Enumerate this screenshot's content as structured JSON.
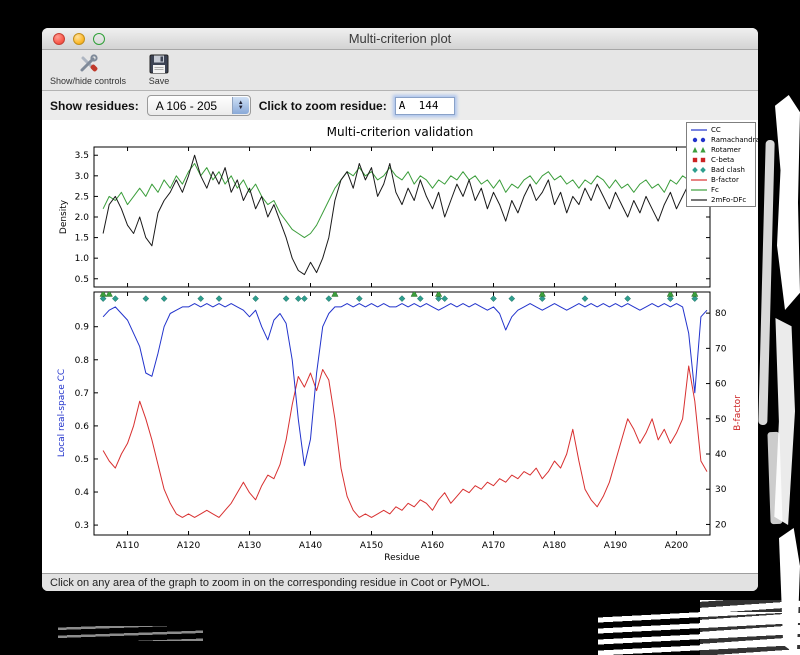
{
  "window": {
    "title": "Multi-criterion plot"
  },
  "toolbar": {
    "show_hide_label": "Show/hide controls",
    "save_label": "Save"
  },
  "controls": {
    "show_residues_label": "Show residues:",
    "residue_range": "A 106 - 205",
    "zoom_label": "Click to zoom residue:",
    "zoom_value": "A  144"
  },
  "statusbar": {
    "text": "Click on any area of the graph to zoom in on the corresponding residue in Coot or PyMOL."
  },
  "figure": {
    "title": "Multi-criterion validation",
    "xlabel": "Residue"
  },
  "legend": [
    {
      "label": "CC",
      "type": "line",
      "color": "#2233cc"
    },
    {
      "label": "Ramachandran",
      "type": "circle",
      "color": "#2233cc"
    },
    {
      "label": "Rotamer",
      "type": "triangle",
      "color": "#3c9e3c"
    },
    {
      "label": "C-beta",
      "type": "square",
      "color": "#cc2222"
    },
    {
      "label": "Bad clash",
      "type": "diamond",
      "color": "#2e9e8e"
    },
    {
      "label": "B-factor",
      "type": "line",
      "color": "#d83030"
    },
    {
      "label": "Fc",
      "type": "line",
      "color": "#3c9e3c"
    },
    {
      "label": "2mFo-DFc",
      "type": "line",
      "color": "#1a1a1a"
    }
  ],
  "chart_data": {
    "type": "line",
    "x_start": 106,
    "xlim": [
      104.5,
      205.5
    ],
    "xticks": {
      "values": [
        110,
        120,
        130,
        140,
        150,
        160,
        170,
        180,
        190,
        200
      ],
      "labels": [
        "A110",
        "A120",
        "A130",
        "A140",
        "A150",
        "A160",
        "A170",
        "A180",
        "A190",
        "A200"
      ]
    },
    "top": {
      "ylabel": "Density",
      "ylim": [
        0.3,
        3.7
      ],
      "yticks": [
        0.5,
        1.0,
        1.5,
        2.0,
        2.5,
        3.0,
        3.5
      ],
      "series": [
        {
          "name": "Fc",
          "color": "#3c9e3c",
          "values": [
            2.2,
            2.5,
            2.4,
            2.6,
            2.3,
            2.5,
            2.7,
            2.5,
            2.8,
            2.6,
            2.9,
            2.7,
            3.0,
            2.8,
            3.1,
            3.3,
            3.0,
            3.2,
            2.9,
            3.1,
            2.8,
            3.0,
            2.7,
            2.9,
            2.6,
            2.8,
            2.5,
            2.3,
            2.4,
            2.1,
            1.9,
            1.7,
            1.6,
            1.5,
            1.6,
            1.8,
            2.1,
            2.4,
            2.7,
            2.9,
            3.1,
            3.0,
            3.2,
            3.0,
            3.1,
            2.9,
            3.0,
            3.2,
            3.0,
            2.9,
            3.1,
            2.8,
            3.0,
            2.9,
            2.7,
            2.9,
            2.8,
            3.0,
            2.9,
            3.1,
            2.9,
            3.0,
            2.8,
            2.9,
            2.7,
            2.9,
            2.6,
            2.8,
            2.7,
            2.9,
            3.0,
            2.8,
            3.0,
            3.1,
            2.9,
            3.0,
            2.8,
            2.9,
            2.7,
            2.9,
            2.8,
            3.0,
            2.9,
            2.7,
            2.9,
            2.7,
            2.8,
            2.6,
            2.8,
            2.9,
            2.7,
            2.8,
            2.6,
            2.9,
            2.8,
            3.0,
            2.9,
            3.1,
            2.8,
            3.0
          ]
        },
        {
          "name": "2mFo-DFc",
          "color": "#1a1a1a",
          "values": [
            1.6,
            2.3,
            2.5,
            2.2,
            1.8,
            1.6,
            2.0,
            1.5,
            1.3,
            2.1,
            2.4,
            2.6,
            2.9,
            2.6,
            3.0,
            3.5,
            3.0,
            2.7,
            3.1,
            2.8,
            3.2,
            2.6,
            2.9,
            2.4,
            2.7,
            2.2,
            2.5,
            2.0,
            2.3,
            1.9,
            1.5,
            1.0,
            0.7,
            0.6,
            0.9,
            0.65,
            1.0,
            1.5,
            2.4,
            2.9,
            3.1,
            2.7,
            3.3,
            2.9,
            3.2,
            2.5,
            2.8,
            3.3,
            2.6,
            2.3,
            2.7,
            2.4,
            2.9,
            2.5,
            2.2,
            2.6,
            2.0,
            2.4,
            2.8,
            2.5,
            2.9,
            2.4,
            2.7,
            2.2,
            2.6,
            2.3,
            1.9,
            2.4,
            2.1,
            2.5,
            2.8,
            2.4,
            2.6,
            2.9,
            2.3,
            2.6,
            2.1,
            2.5,
            2.3,
            2.7,
            2.4,
            2.8,
            2.5,
            2.2,
            2.6,
            2.3,
            2.0,
            2.4,
            2.1,
            2.5,
            2.2,
            1.9,
            2.3,
            2.6,
            2.2,
            2.5,
            2.8,
            2.4,
            3.0,
            2.6
          ]
        }
      ]
    },
    "bottom": {
      "ylabel_left": "Local real-space CC",
      "ylabel_left_color": "#2233cc",
      "ylabel_right": "B-factor",
      "ylabel_right_color": "#cc2222",
      "ylim_left": [
        0.27,
        1.005
      ],
      "yticks_left": [
        0.3,
        0.4,
        0.5,
        0.6,
        0.7,
        0.8,
        0.9
      ],
      "ylim_right": [
        17,
        86
      ],
      "yticks_right": [
        20,
        30,
        40,
        50,
        60,
        70,
        80
      ],
      "cc": {
        "name": "CC",
        "color": "#2233cc",
        "values": [
          0.93,
          0.95,
          0.96,
          0.94,
          0.92,
          0.88,
          0.84,
          0.76,
          0.75,
          0.82,
          0.9,
          0.94,
          0.95,
          0.96,
          0.96,
          0.97,
          0.96,
          0.97,
          0.96,
          0.97,
          0.96,
          0.97,
          0.96,
          0.95,
          0.93,
          0.95,
          0.9,
          0.86,
          0.92,
          0.94,
          0.91,
          0.8,
          0.62,
          0.48,
          0.56,
          0.76,
          0.9,
          0.94,
          0.96,
          0.96,
          0.97,
          0.96,
          0.97,
          0.96,
          0.97,
          0.96,
          0.97,
          0.96,
          0.96,
          0.97,
          0.96,
          0.97,
          0.96,
          0.97,
          0.96,
          0.95,
          0.96,
          0.97,
          0.96,
          0.97,
          0.96,
          0.97,
          0.96,
          0.95,
          0.96,
          0.94,
          0.89,
          0.93,
          0.95,
          0.96,
          0.97,
          0.96,
          0.95,
          0.96,
          0.97,
          0.96,
          0.95,
          0.96,
          0.97,
          0.96,
          0.97,
          0.96,
          0.97,
          0.96,
          0.97,
          0.96,
          0.97,
          0.96,
          0.95,
          0.96,
          0.97,
          0.96,
          0.97,
          0.96,
          0.97,
          0.96,
          0.88,
          0.7,
          0.93,
          0.95
        ]
      },
      "bfactor": {
        "name": "B-factor",
        "color": "#d83030",
        "values": [
          41,
          38,
          36,
          40,
          43,
          48,
          55,
          50,
          44,
          37,
          30,
          26,
          23,
          22,
          23,
          22,
          23,
          24,
          23,
          22,
          24,
          26,
          29,
          32,
          29,
          27,
          31,
          34,
          33,
          37,
          44,
          54,
          62,
          59,
          63,
          58,
          64,
          61,
          50,
          36,
          28,
          24,
          22,
          23,
          22,
          23,
          24,
          23,
          25,
          24,
          26,
          25,
          27,
          26,
          24,
          27,
          29,
          26,
          28,
          30,
          29,
          31,
          30,
          32,
          31,
          33,
          32,
          34,
          33,
          35,
          34,
          36,
          33,
          35,
          38,
          36,
          40,
          47,
          38,
          30,
          27,
          25,
          28,
          32,
          38,
          44,
          50,
          47,
          43,
          46,
          50,
          44,
          47,
          43,
          46,
          50,
          65,
          55,
          38,
          35
        ]
      },
      "markers": [
        {
          "name": "Bad clash",
          "shape": "diamond",
          "color": "#2e9e8e",
          "y": 0.985,
          "residues": [
            106,
            108,
            113,
            116,
            122,
            125,
            131,
            136,
            138,
            139,
            143,
            148,
            155,
            158,
            161,
            162,
            170,
            173,
            178,
            185,
            192,
            199,
            203
          ]
        },
        {
          "name": "Rotamer",
          "shape": "triangle",
          "color": "#3c9e3c",
          "y": 1.0,
          "residues": [
            106,
            107,
            144,
            157,
            161,
            178,
            199,
            203
          ]
        }
      ]
    }
  }
}
